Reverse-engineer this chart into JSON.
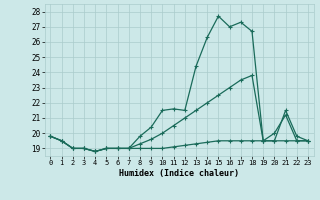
{
  "xlabel": "Humidex (Indice chaleur)",
  "bg_color": "#cce8e8",
  "grid_color": "#aacccc",
  "line_color": "#1a6b5a",
  "xlim": [
    -0.5,
    23.5
  ],
  "ylim": [
    18.5,
    28.5
  ],
  "yticks": [
    19,
    20,
    21,
    22,
    23,
    24,
    25,
    26,
    27,
    28
  ],
  "xticks": [
    0,
    1,
    2,
    3,
    4,
    5,
    6,
    7,
    8,
    9,
    10,
    11,
    12,
    13,
    14,
    15,
    16,
    17,
    18,
    19,
    20,
    21,
    22,
    23
  ],
  "line1_x": [
    0,
    1,
    2,
    3,
    4,
    5,
    6,
    7,
    8,
    9,
    10,
    11,
    12,
    13,
    14,
    15,
    16,
    17,
    18,
    19,
    20,
    21,
    22,
    23
  ],
  "line1_y": [
    19.8,
    19.5,
    19.0,
    19.0,
    18.8,
    19.0,
    19.0,
    19.0,
    19.8,
    20.4,
    21.5,
    21.6,
    21.5,
    24.4,
    26.3,
    27.7,
    27.0,
    27.3,
    26.7,
    19.5,
    19.5,
    21.5,
    19.8,
    19.5
  ],
  "line2_x": [
    0,
    1,
    2,
    3,
    4,
    5,
    6,
    7,
    8,
    9,
    10,
    11,
    12,
    13,
    14,
    15,
    16,
    17,
    18,
    19,
    20,
    21,
    22,
    23
  ],
  "line2_y": [
    19.8,
    19.5,
    19.0,
    19.0,
    18.8,
    19.0,
    19.0,
    19.0,
    19.3,
    19.6,
    20.0,
    20.5,
    21.0,
    21.5,
    22.0,
    22.5,
    23.0,
    23.5,
    23.8,
    19.5,
    20.0,
    21.2,
    19.5,
    19.5
  ],
  "line3_x": [
    0,
    1,
    2,
    3,
    4,
    5,
    6,
    7,
    8,
    9,
    10,
    11,
    12,
    13,
    14,
    15,
    16,
    17,
    18,
    19,
    20,
    21,
    22,
    23
  ],
  "line3_y": [
    19.8,
    19.5,
    19.0,
    19.0,
    18.8,
    19.0,
    19.0,
    19.0,
    19.0,
    19.0,
    19.0,
    19.1,
    19.2,
    19.3,
    19.4,
    19.5,
    19.5,
    19.5,
    19.5,
    19.5,
    19.5,
    19.5,
    19.5,
    19.5
  ]
}
